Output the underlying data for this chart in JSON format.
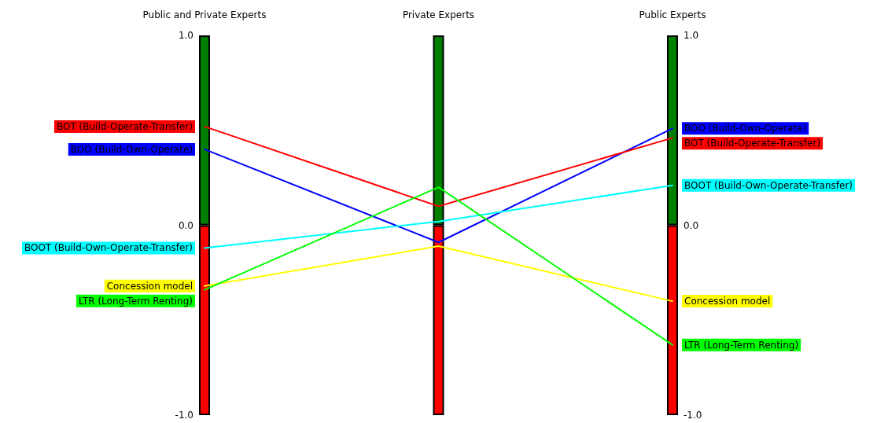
{
  "chart_data": {
    "type": "line",
    "categories": [
      "Public and Private Experts",
      "Private Experts",
      "Public Experts"
    ],
    "series": [
      {
        "type": "bar",
        "color": "#007f00",
        "values": [
          1,
          1,
          1
        ]
      },
      {
        "type": "bar",
        "color": "#ff0000",
        "values": [
          -1,
          -1,
          -1
        ]
      },
      {
        "name": "BOO (Build-Own-Operate)",
        "color": "#0000ff",
        "values": [
          0.4,
          -0.09,
          0.51
        ]
      },
      {
        "name": "BOT (Build-Operate-Transfer)",
        "color": "#ff0000",
        "values": [
          0.52,
          0.1,
          0.46
        ]
      },
      {
        "name": "BOOT (Build-Own-Operate-Transfer)",
        "color": "#00ffff",
        "values": [
          -0.12,
          0.02,
          0.21
        ]
      },
      {
        "name": "Concession model",
        "color": "#ffff00",
        "values": [
          -0.32,
          -0.11,
          -0.4
        ]
      },
      {
        "name": "LTR (Long-Term Renting)",
        "color": "#00ff00",
        "values": [
          -0.34,
          0.2,
          -0.63
        ]
      }
    ],
    "ylim": [
      -1,
      1
    ],
    "yticks": [
      {
        "value": -1,
        "label": "-1.0"
      },
      {
        "value": 0,
        "label": "0.0"
      },
      {
        "value": 1,
        "label": "1.0"
      }
    ],
    "y2lim": [
      -1,
      1
    ],
    "y2ticks": [
      {
        "value": -1,
        "label": "-1.0"
      },
      {
        "value": 0,
        "label": "0.0"
      },
      {
        "value": 1,
        "label": "1.0"
      }
    ],
    "stacked": true,
    "marker": "none",
    "line_style": "solid"
  }
}
